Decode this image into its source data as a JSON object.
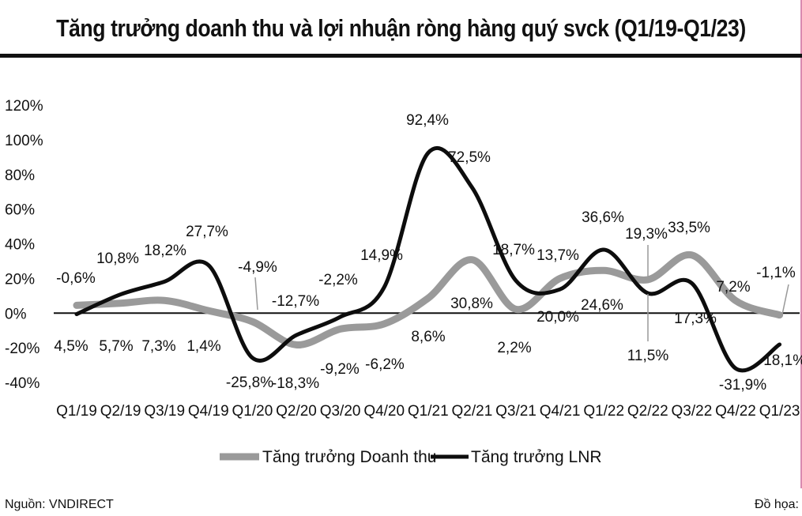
{
  "title": "Tăng trưởng doanh thu và lợi nhuận ròng hàng quý svck (Q1/19-Q1/23)",
  "footer": {
    "source": "Nguồn: VNDIRECT",
    "credit": "Đồ họa:"
  },
  "colors": {
    "revenue": "#9a9a9a",
    "profit": "#0d0d0d",
    "frame": "#d98ab0"
  },
  "chart_data": {
    "type": "line",
    "categories": [
      "Q1/19",
      "Q2/19",
      "Q3/19",
      "Q4/19",
      "Q1/20",
      "Q2/20",
      "Q3/20",
      "Q4/20",
      "Q1/21",
      "Q2/21",
      "Q3/21",
      "Q4/21",
      "Q1/22",
      "Q2/22",
      "Q3/22",
      "Q4/22",
      "Q1/23"
    ],
    "series": [
      {
        "name": "Tăng trưởng Doanh thu",
        "values": [
          4.5,
          5.7,
          7.3,
          1.4,
          -4.9,
          -18.3,
          -9.2,
          -6.2,
          8.6,
          30.8,
          2.2,
          20.0,
          24.6,
          19.3,
          33.5,
          7.2,
          -1.1
        ],
        "labels": [
          "4,5%",
          "5,7%",
          "7,3%",
          "1,4%",
          "-4,9%",
          "-18,3%",
          "-9,2%",
          "-6,2%",
          "8,6%",
          "30,8%",
          "2,2%",
          "20,0%",
          "24,6%",
          "19,3%",
          "33,5%",
          "7,2%",
          "-1,1%"
        ]
      },
      {
        "name": "Tăng trưởng LNR",
        "values": [
          -0.6,
          10.8,
          18.2,
          27.7,
          -25.8,
          -12.7,
          -2.2,
          14.9,
          92.4,
          72.5,
          18.7,
          13.7,
          36.6,
          11.5,
          17.3,
          -31.9,
          -18.1
        ],
        "labels": [
          "-0,6%",
          "10,8%",
          "18,2%",
          "27,7%",
          "-25,8%",
          "-12,7%",
          "-2,2%",
          "14,9%",
          "92,4%",
          "72,5%",
          "18,7%",
          "13,7%",
          "36,6%",
          "11,5%",
          "17,3%",
          "-31,9%",
          "-18,1%"
        ]
      }
    ],
    "y_ticks": [
      "120%",
      "100%",
      "80%",
      "60%",
      "40%",
      "20%",
      "0%",
      "-20%",
      "-40%"
    ],
    "ylim": [
      -40,
      120
    ],
    "xlabel": "",
    "ylabel": "",
    "grid": false,
    "legend_position": "bottom"
  }
}
